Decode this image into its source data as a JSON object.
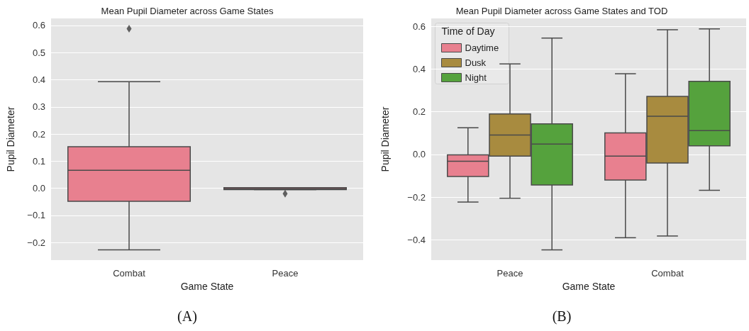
{
  "chart_data": [
    {
      "type": "box",
      "title": "Mean Pupil Diameter across Game States",
      "xlabel": "Game State",
      "ylabel": "Pupil Diameter",
      "categories": [
        "Combat",
        "Peace"
      ],
      "series": [
        {
          "color": "#e8808f",
          "boxes": [
            {
              "low": -0.227,
              "q1": -0.048,
              "median": 0.066,
              "q3": 0.153,
              "high": 0.393,
              "outliers": [
                0.588
              ]
            },
            {
              "low": -0.005,
              "q1": -0.005,
              "median": -0.002,
              "q3": 0.002,
              "high": 0.002,
              "outliers": [
                -0.02
              ]
            }
          ]
        }
      ],
      "ylim": [
        -0.265,
        0.626
      ],
      "yticks": [
        {
          "value": -0.2,
          "label": "−0.2"
        },
        {
          "value": -0.1,
          "label": "−0.1"
        },
        {
          "value": 0,
          "label": "0.0"
        },
        {
          "value": 0.1,
          "label": "0.1"
        },
        {
          "value": 0.2,
          "label": "0.2"
        },
        {
          "value": 0.3,
          "label": "0.3"
        },
        {
          "value": 0.4,
          "label": "0.4"
        },
        {
          "value": 0.5,
          "label": "0.5"
        },
        {
          "value": 0.6,
          "label": "0.6"
        }
      ],
      "grid": "y",
      "marker": "diamond",
      "annotations": [
        "(A)"
      ]
    },
    {
      "type": "box",
      "title": "Mean Pupil Diameter across Game States and TOD",
      "xlabel": "Game State",
      "ylabel": "Pupil Diameter",
      "legend_title": "Time of Day",
      "categories": [
        "Peace",
        "Combat"
      ],
      "series": [
        {
          "name": "Daytime",
          "color": "#e8808f",
          "boxes": [
            {
              "low": -0.223,
              "q1": -0.103,
              "median": -0.032,
              "q3": -0.002,
              "high": 0.125
            },
            {
              "low": -0.39,
              "q1": -0.12,
              "median": -0.008,
              "q3": 0.101,
              "high": 0.378
            }
          ]
        },
        {
          "name": "Dusk",
          "color": "#a88b3f",
          "boxes": [
            {
              "low": -0.205,
              "q1": -0.008,
              "median": 0.091,
              "q3": 0.19,
              "high": 0.424
            },
            {
              "low": -0.382,
              "q1": -0.04,
              "median": 0.179,
              "q3": 0.272,
              "high": 0.584
            }
          ]
        },
        {
          "name": "Night",
          "color": "#55a23d",
          "boxes": [
            {
              "low": -0.447,
              "q1": -0.143,
              "median": 0.049,
              "q3": 0.143,
              "high": 0.545
            },
            {
              "low": -0.168,
              "q1": 0.04,
              "median": 0.112,
              "q3": 0.342,
              "high": 0.588
            }
          ]
        }
      ],
      "ylim": [
        -0.495,
        0.637
      ],
      "yticks": [
        {
          "value": -0.4,
          "label": "−0.4"
        },
        {
          "value": -0.2,
          "label": "−0.2"
        },
        {
          "value": 0,
          "label": "0.0"
        },
        {
          "value": 0.2,
          "label": "0.2"
        },
        {
          "value": 0.4,
          "label": "0.4"
        },
        {
          "value": 0.6,
          "label": "0.6"
        }
      ],
      "grid": "y",
      "legend": "top left",
      "annotations": [
        "(B)"
      ]
    }
  ]
}
